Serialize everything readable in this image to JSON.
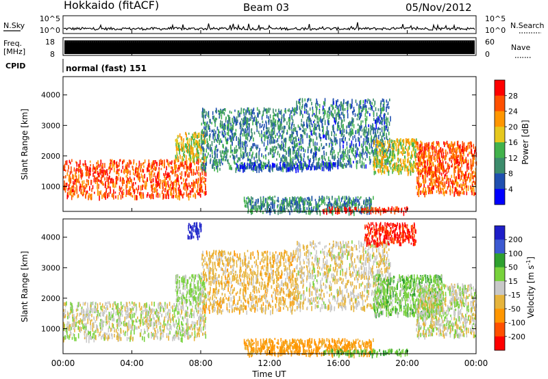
{
  "header": {
    "station": "Hokkaido (fitACF)",
    "beam": "Beam 03",
    "date": "05/Nov/2012"
  },
  "nsky_panel": {
    "left_label": "N.Sky",
    "right_label": "N.Search",
    "left_ticks": [
      "10^5",
      "10^0"
    ],
    "right_ticks": [
      "10^5",
      "10^0"
    ]
  },
  "freq_panel": {
    "left_label_1": "Freq.",
    "left_label_2": "[MHz]",
    "right_label": "Nave",
    "left_ticks": [
      "18",
      "8"
    ],
    "right_ticks": [
      "60",
      "0"
    ]
  },
  "cpid_panel": {
    "label": "CPID",
    "mode_text": "normal (fast) 151"
  },
  "time_axis": {
    "xlabel": "Time UT",
    "tick_labels": [
      "00:00",
      "04:00",
      "08:00",
      "12:00",
      "16:00",
      "20:00",
      "00:00"
    ]
  },
  "colors": {
    "power_scale": [
      "#0000ff",
      "#2050b0",
      "#3c8c6c",
      "#42b24c",
      "#e6c81e",
      "#ff9600",
      "#ff5000",
      "#ff0000"
    ],
    "velocity_scale": [
      "#1e1ec8",
      "#3c5ad2",
      "#2ea02e",
      "#78d23c",
      "#c8c8c8",
      "#e6b43c",
      "#ff9600",
      "#ff5000",
      "#ff0000"
    ]
  },
  "chart_data": [
    {
      "type": "heatmap",
      "title": "",
      "xlabel": "Time UT",
      "ylabel": "Slant Range [km]",
      "xlim": [
        "00:00",
        "24:00"
      ],
      "ylim": [
        180,
        4600
      ],
      "y_ticks": [
        "1000",
        "2000",
        "3000",
        "4000"
      ],
      "colorbar": {
        "label": "Power [dB]",
        "range": [
          0,
          32
        ],
        "tick_labels": [
          "4",
          "8",
          "12",
          "16",
          "20",
          "24",
          "28"
        ]
      },
      "echo_regions": [
        {
          "t_start_h": 0.0,
          "t_end_h": 8.3,
          "r_min_km": 700,
          "r_max_km": 1900,
          "level": 0.82
        },
        {
          "t_start_h": 6.5,
          "t_end_h": 8.3,
          "r_min_km": 1900,
          "r_max_km": 2800,
          "level": 0.55
        },
        {
          "t_start_h": 8.0,
          "t_end_h": 13.5,
          "r_min_km": 1600,
          "r_max_km": 3600,
          "level": 0.3
        },
        {
          "t_start_h": 10.0,
          "t_end_h": 16.0,
          "r_min_km": 1600,
          "r_max_km": 1800,
          "level": 0.12
        },
        {
          "t_start_h": 13.5,
          "t_end_h": 19.0,
          "r_min_km": 1700,
          "r_max_km": 3900,
          "level": 0.28
        },
        {
          "t_start_h": 18.0,
          "t_end_h": 20.5,
          "r_min_km": 1500,
          "r_max_km": 2600,
          "level": 0.55
        },
        {
          "t_start_h": 20.5,
          "t_end_h": 24.0,
          "r_min_km": 800,
          "r_max_km": 2500,
          "level": 0.8
        },
        {
          "t_start_h": 10.5,
          "t_end_h": 18.0,
          "r_min_km": 200,
          "r_max_km": 700,
          "level": 0.3
        },
        {
          "t_start_h": 15.0,
          "t_end_h": 20.0,
          "r_min_km": 200,
          "r_max_km": 350,
          "level": 0.92
        }
      ]
    },
    {
      "type": "heatmap",
      "title": "",
      "xlabel": "Time UT",
      "ylabel": "Slant Range [km]",
      "xlim": [
        "00:00",
        "24:00"
      ],
      "ylim": [
        180,
        4600
      ],
      "y_ticks": [
        "1000",
        "2000",
        "3000",
        "4000"
      ],
      "colorbar": {
        "label": "Velocity [m s-1]",
        "label_main": "Velocity [m s",
        "label_exp": "-1",
        "label_end": "]",
        "range": [
          -250,
          250
        ],
        "tick_labels": [
          "200",
          "100",
          "50",
          "15",
          "-15",
          "-50",
          "-100",
          "-200"
        ]
      },
      "echo_regions": [
        {
          "t_start_h": 0.0,
          "t_end_h": 8.3,
          "r_min_km": 700,
          "r_max_km": 1900,
          "velocity": 0
        },
        {
          "t_start_h": 6.5,
          "t_end_h": 8.3,
          "r_min_km": 1900,
          "r_max_km": 2800,
          "velocity": 20
        },
        {
          "t_start_h": 7.2,
          "t_end_h": 8.0,
          "r_min_km": 4000,
          "r_max_km": 4500,
          "velocity": 220
        },
        {
          "t_start_h": 8.0,
          "t_end_h": 13.5,
          "r_min_km": 1600,
          "r_max_km": 3600,
          "velocity": -30
        },
        {
          "t_start_h": 13.5,
          "t_end_h": 19.0,
          "r_min_km": 1700,
          "r_max_km": 3900,
          "velocity": -10
        },
        {
          "t_start_h": 17.5,
          "t_end_h": 20.5,
          "r_min_km": 3800,
          "r_max_km": 4500,
          "velocity": -210
        },
        {
          "t_start_h": 18.0,
          "t_end_h": 22.0,
          "r_min_km": 1500,
          "r_max_km": 2800,
          "velocity": 35
        },
        {
          "t_start_h": 20.5,
          "t_end_h": 24.0,
          "r_min_km": 800,
          "r_max_km": 2500,
          "velocity": 0
        },
        {
          "t_start_h": 10.5,
          "t_end_h": 18.0,
          "r_min_km": 200,
          "r_max_km": 700,
          "velocity": -70
        },
        {
          "t_start_h": 15.0,
          "t_end_h": 20.0,
          "r_min_km": 200,
          "r_max_km": 350,
          "velocity": 50
        }
      ]
    }
  ]
}
